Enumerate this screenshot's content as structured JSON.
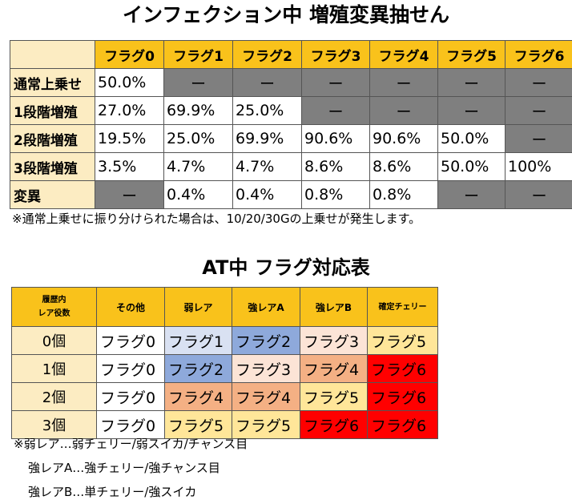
{
  "title1": "インフェクション中 増殖変異抽せん",
  "table1": {
    "headers": [
      "フラグ0",
      "フラグ1",
      "フラグ2",
      "フラグ3",
      "フラグ4",
      "フラグ5",
      "フラグ6"
    ],
    "rows": [
      {
        "label": "通常上乗せ",
        "cells": [
          "50.0%",
          "ー",
          "ー",
          "ー",
          "ー",
          "ー",
          "ー"
        ]
      },
      {
        "label": "1段階増殖",
        "cells": [
          "27.0%",
          "69.9%",
          "25.0%",
          "ー",
          "ー",
          "ー",
          "ー"
        ]
      },
      {
        "label": "2段階増殖",
        "cells": [
          "19.5%",
          "25.0%",
          "69.9%",
          "90.6%",
          "90.6%",
          "50.0%",
          "ー"
        ]
      },
      {
        "label": "3段階増殖",
        "cells": [
          "3.5%",
          "4.7%",
          "4.7%",
          "8.6%",
          "8.6%",
          "50.0%",
          "100%"
        ]
      },
      {
        "label": "変異",
        "cells": [
          "ー",
          "0.4%",
          "0.4%",
          "0.8%",
          "0.8%",
          "ー",
          "ー"
        ]
      }
    ]
  },
  "note1": "※通常上乗せに振り分けられた場合は、10/20/30Gの上乗せが発生します。",
  "title2": "AT中 フラグ対応表",
  "table2": {
    "corner_line1": "履歴内",
    "corner_line2": "レア役数",
    "headers": [
      "その他",
      "弱レア",
      "強レアA",
      "強レアB",
      "確定チェリー"
    ],
    "rows": [
      {
        "label": "0個",
        "cells": [
          "フラグ0",
          "フラグ1",
          "フラグ2",
          "フラグ3",
          "フラグ5"
        ]
      },
      {
        "label": "1個",
        "cells": [
          "フラグ0",
          "フラグ2",
          "フラグ3",
          "フラグ4",
          "フラグ6"
        ]
      },
      {
        "label": "2個",
        "cells": [
          "フラグ0",
          "フラグ4",
          "フラグ4",
          "フラグ5",
          "フラグ6"
        ]
      },
      {
        "label": "3個",
        "cells": [
          "フラグ0",
          "フラグ5",
          "フラグ5",
          "フラグ6",
          "フラグ6"
        ]
      }
    ],
    "flag_colors": {
      "フラグ0": "#ffffff",
      "フラグ1": "#d9e1f2",
      "フラグ2": "#8ea9db",
      "フラグ3": "#fce4d6",
      "フラグ4": "#f4b084",
      "フラグ5": "#ffe699",
      "フラグ6": "#ff0000"
    }
  },
  "notes2": [
    "※弱レア…弱チェリー/弱スイカ/チャンス目",
    "強レアA…強チェリー/強チャンス目",
    "強レアB…単チェリー/強スイカ"
  ]
}
